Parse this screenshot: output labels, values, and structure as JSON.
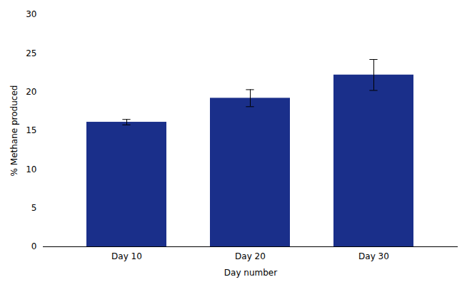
{
  "chart_data": {
    "type": "bar",
    "categories": [
      "Day 10",
      "Day 20",
      "Day 30"
    ],
    "values": [
      16.1,
      19.2,
      22.2
    ],
    "errors": [
      0.35,
      1.1,
      2.0
    ],
    "color": "#1a2f8a",
    "xlabel": "Day number",
    "ylabel": "% Methane produced",
    "ylim": [
      0,
      30
    ],
    "yticks": [
      0,
      5,
      10,
      15,
      20,
      25,
      30
    ],
    "grid": false
  }
}
